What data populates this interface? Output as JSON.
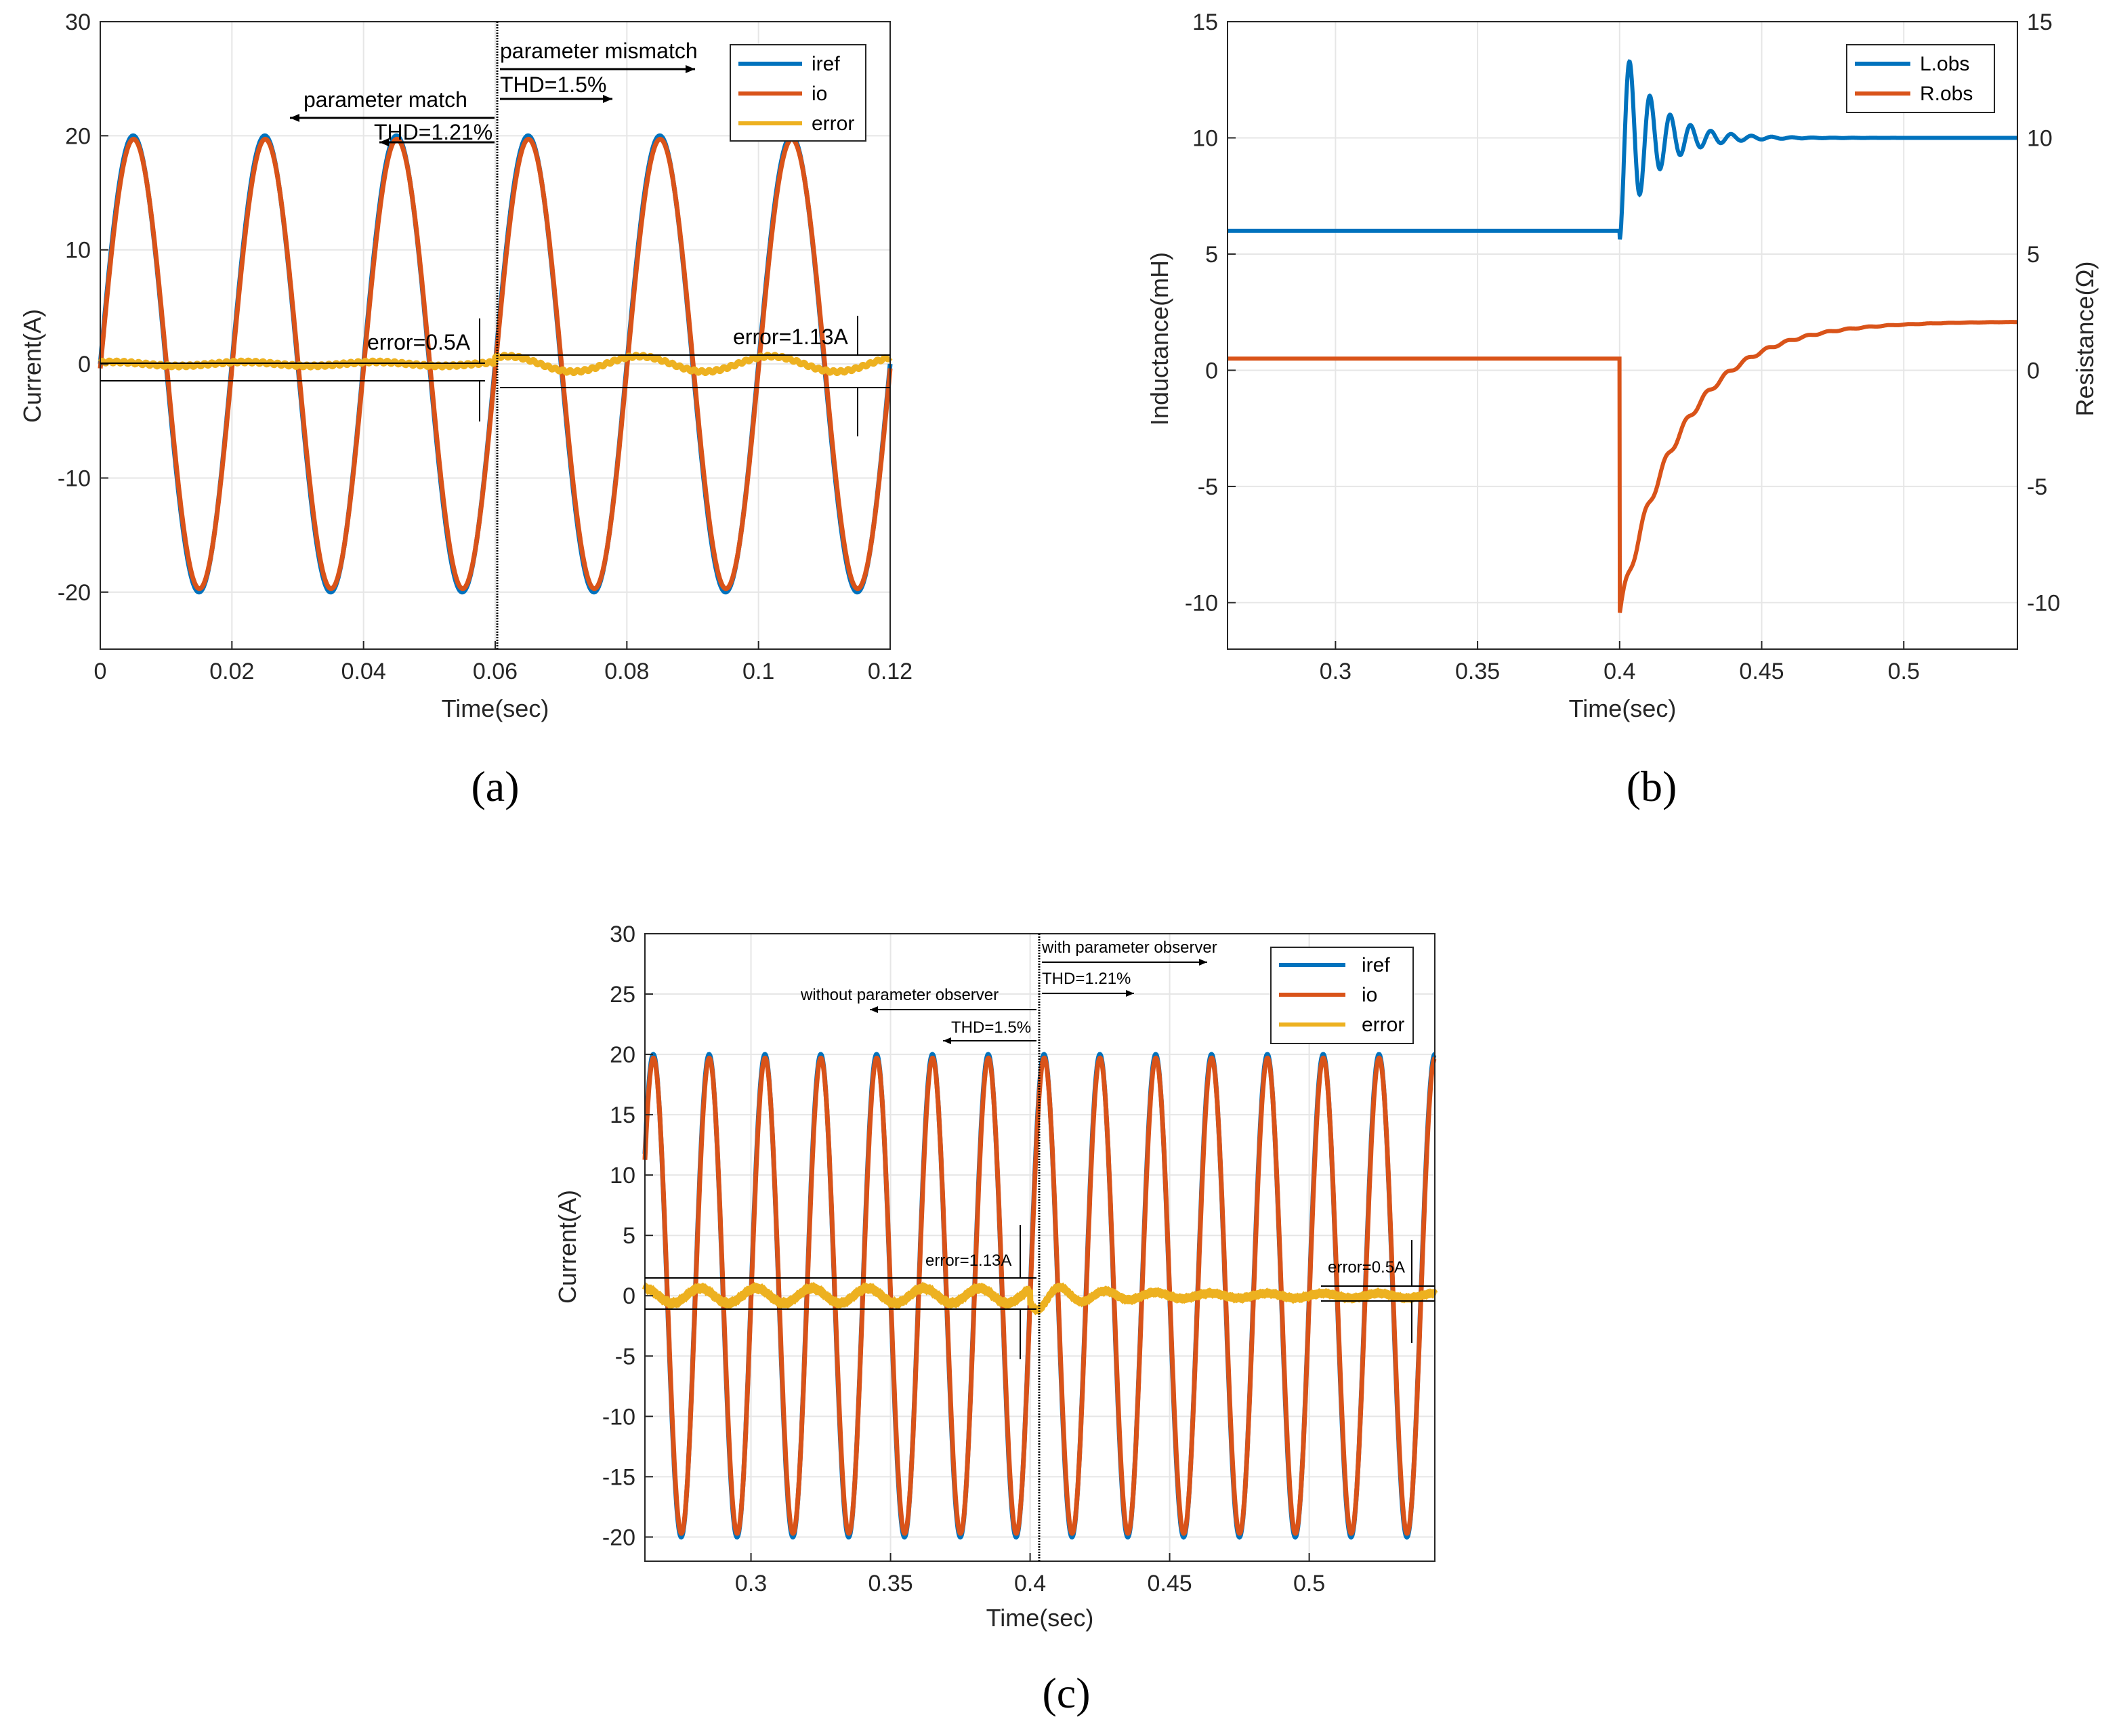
{
  "chart_data": [
    {
      "id": "a",
      "type": "line",
      "caption": "(a)",
      "xlabel": "Time(sec)",
      "ylabel": "Current(A)",
      "xlim": [
        0,
        0.12
      ],
      "ylim": [
        -25,
        30
      ],
      "xticks": [
        0,
        0.02,
        0.04,
        0.06,
        0.08,
        0.1,
        0.12
      ],
      "xtick_labels": [
        "0",
        "0.02",
        "0.04",
        "0.06",
        "0.08",
        "0.1",
        "0.12"
      ],
      "yticks": [
        -20,
        -10,
        0,
        10,
        20,
        30
      ],
      "ytick_labels": [
        "-20",
        "-10",
        "0",
        "10",
        "20",
        "30"
      ],
      "grid": true,
      "legend": [
        "iref",
        "io",
        "error"
      ],
      "series": [
        {
          "name": "iref",
          "color": "#0072BD",
          "freq_hz": 50,
          "amplitude": 20
        },
        {
          "name": "io",
          "color": "#D95319",
          "freq_hz": 50,
          "amplitude": 20
        },
        {
          "name": "error",
          "color": "#EDB120",
          "amplitude_before": 0.5,
          "amplitude_after": 1.13
        }
      ],
      "switch_time": 0.06,
      "annotations": {
        "mismatch": "parameter mismatch",
        "thd_mismatch": "THD=1.5%",
        "match": "parameter match",
        "thd_match": "THD=1.21%",
        "error_left": "error=0.5A",
        "error_right": "error=1.13A"
      }
    },
    {
      "id": "b",
      "type": "line",
      "caption": "(b)",
      "xlabel": "Time(sec)",
      "ylabel": "Inductance(mH)",
      "ylabel_right": "Resistance(Ω)",
      "xlim": [
        0.262,
        0.54
      ],
      "ylim": [
        -12,
        15
      ],
      "xticks": [
        0.3,
        0.35,
        0.4,
        0.45,
        0.5
      ],
      "xtick_labels": [
        "0.3",
        "0.35",
        "0.4",
        "0.45",
        "0.5"
      ],
      "yticks": [
        -10,
        -5,
        0,
        5,
        10,
        15
      ],
      "ytick_labels": [
        "-10",
        "-5",
        "0",
        "5",
        "10",
        "15"
      ],
      "grid": true,
      "legend": [
        "L.obs",
        "R.obs"
      ],
      "series": [
        {
          "name": "L.obs",
          "color": "#0072BD",
          "before": 6,
          "after": 10
        },
        {
          "name": "R.obs",
          "color": "#D95319",
          "before": 0.5,
          "dip": -10.5,
          "after": 2.1
        }
      ],
      "switch_time": 0.4
    },
    {
      "id": "c",
      "type": "line",
      "caption": "(c)",
      "xlabel": "Time(sec)",
      "ylabel": "Current(A)",
      "xlim": [
        0.262,
        0.545
      ],
      "ylim": [
        -22,
        30
      ],
      "xticks": [
        0.3,
        0.35,
        0.4,
        0.45,
        0.5
      ],
      "xtick_labels": [
        "0.3",
        "0.35",
        "0.4",
        "0.45",
        "0.5"
      ],
      "yticks": [
        -20,
        -15,
        -10,
        -5,
        0,
        5,
        10,
        15,
        20,
        25,
        30
      ],
      "ytick_labels": [
        "-20",
        "-15",
        "-10",
        "-5",
        "0",
        "5",
        "10",
        "15",
        "20",
        "25",
        "30"
      ],
      "grid": true,
      "legend": [
        "iref",
        "io",
        "error"
      ],
      "series": [
        {
          "name": "iref",
          "color": "#0072BD",
          "freq_hz": 50,
          "amplitude": 20
        },
        {
          "name": "io",
          "color": "#D95319",
          "freq_hz": 50,
          "amplitude": 20
        },
        {
          "name": "error",
          "color": "#EDB120",
          "amplitude_before": 1.13,
          "amplitude_after": 0.5
        }
      ],
      "switch_time": 0.4,
      "annotations": {
        "with_obs": "with parameter observer",
        "thd_with": "THD=1.21%",
        "without_obs": "without parameter observer",
        "thd_without": "THD=1.5%",
        "error_left": "error=1.13A",
        "error_right": "error=0.5A"
      }
    }
  ]
}
